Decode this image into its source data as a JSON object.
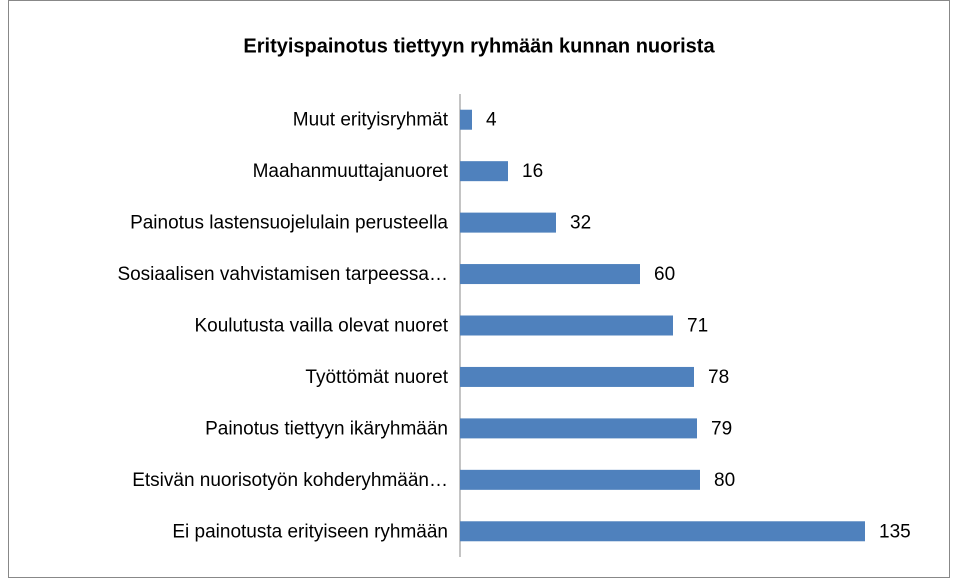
{
  "chart_data": {
    "type": "barh",
    "title": "Erityispainotus tiettyyn ryhmään kunnan nuorista",
    "categories": [
      "Muut erityisryhmät",
      "Maahanmuuttajanuoret",
      "Painotus lastensuojelulain perusteella",
      "Sosiaalisen vahvistamisen tarpeessa…",
      "Koulutusta vailla olevat nuoret",
      "Työttömät nuoret",
      "Painotus tiettyyn ikäryhmään",
      "Etsivän nuorisotyön kohderyhmään…",
      "Ei painotusta erityiseen ryhmään"
    ],
    "values": [
      4,
      16,
      32,
      60,
      71,
      78,
      79,
      80,
      135
    ],
    "color": "#4f81bd"
  }
}
